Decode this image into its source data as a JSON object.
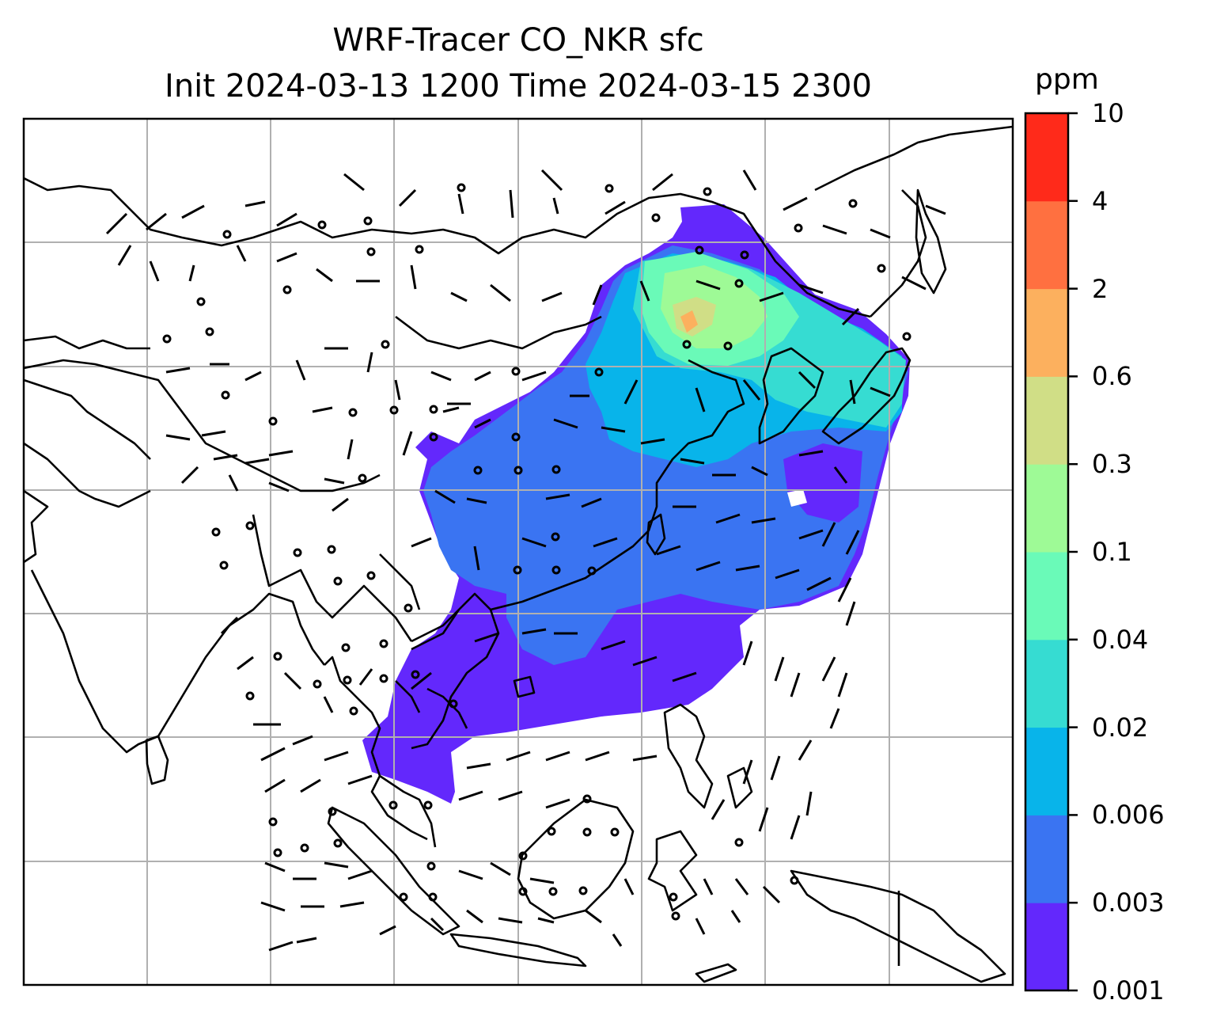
{
  "title": {
    "line1": "WRF-Tracer CO_NKR sfc",
    "line2": "Init 2024-03-13 1200 Time 2024-03-15 2300"
  },
  "colorbar": {
    "units": "ppm",
    "ticks": [
      "0.001",
      "0.003",
      "0.006",
      "0.02",
      "0.04",
      "0.1",
      "0.3",
      "0.6",
      "2",
      "4",
      "10"
    ],
    "colors": [
      "#6328fc",
      "#3a74f2",
      "#08b4ea",
      "#36dcd2",
      "#6afab8",
      "#9efa96",
      "#d0de86",
      "#fcb05e",
      "#ff7040",
      "#ff2a1a"
    ]
  },
  "map": {
    "gridlines": true,
    "wind_barbs": true,
    "tracer_field": "CO_NKR surface concentration"
  }
}
